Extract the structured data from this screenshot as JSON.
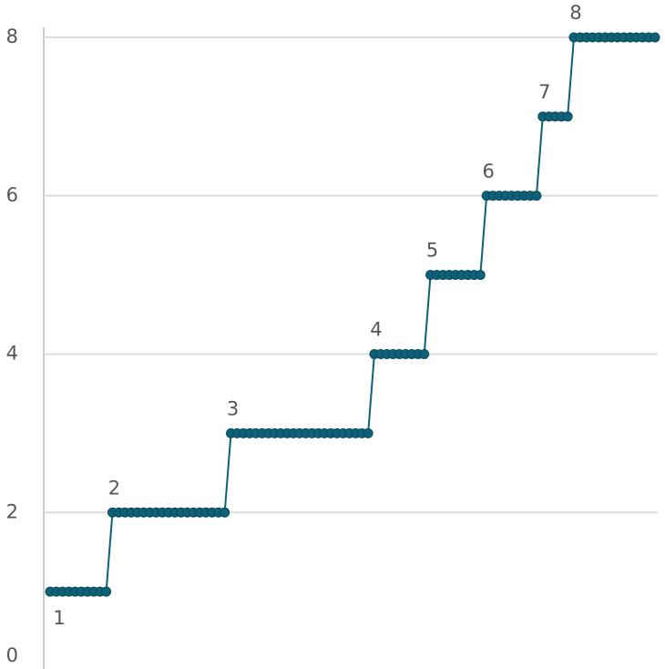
{
  "chart_data": {
    "type": "line",
    "values": [
      1,
      1,
      1,
      1,
      1,
      1,
      1,
      1,
      1,
      1,
      2,
      2,
      2,
      2,
      2,
      2,
      2,
      2,
      2,
      2,
      2,
      2,
      2,
      2,
      2,
      2,
      2,
      2,
      2,
      3,
      3,
      3,
      3,
      3,
      3,
      3,
      3,
      3,
      3,
      3,
      3,
      3,
      3,
      3,
      3,
      3,
      3,
      3,
      3,
      3,
      3,
      3,
      4,
      4,
      4,
      4,
      4,
      4,
      4,
      4,
      4,
      5,
      5,
      5,
      5,
      5,
      5,
      5,
      5,
      5,
      6,
      6,
      6,
      6,
      6,
      6,
      6,
      6,
      6,
      7,
      7,
      7,
      7,
      7,
      8,
      8,
      8,
      8,
      8,
      8,
      8,
      8,
      8,
      8,
      8,
      8,
      8,
      8
    ],
    "color": "#0f6178",
    "ylim": [
      0,
      8
    ],
    "yticks": [
      0,
      2,
      4,
      6,
      8
    ],
    "grid": true
  }
}
